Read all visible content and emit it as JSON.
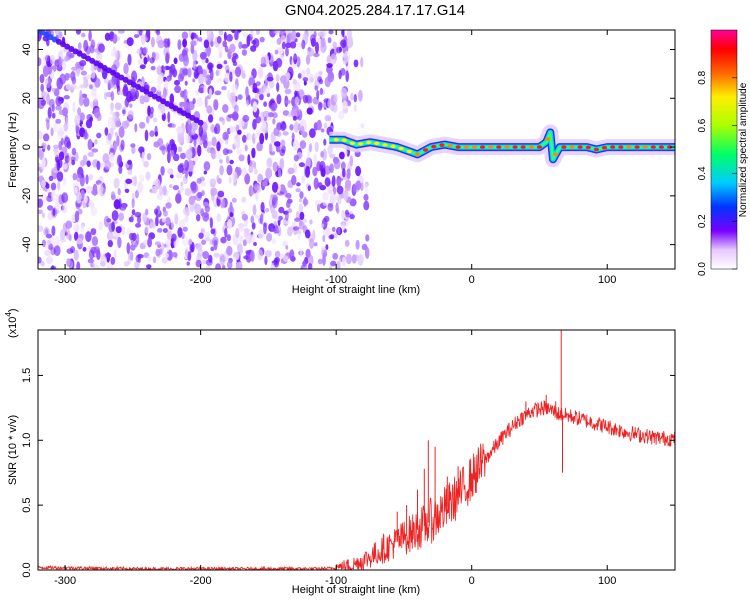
{
  "title": "GN04.2025.284.17.17.G14",
  "chart_data": [
    {
      "type": "heatmap",
      "title": "GN04.2025.284.17.17.G14",
      "xlabel": "Height of straight line (km)",
      "ylabel": "Frequency (Hz)",
      "xlim": [
        -320,
        150
      ],
      "ylim": [
        -50,
        48
      ],
      "xticks": [
        "-300",
        "-200",
        "-100",
        "0",
        "100"
      ],
      "yticks": [
        "-40",
        "-20",
        "0",
        "20",
        "40"
      ],
      "colorbar": {
        "label": "Normalized spectral amplitude",
        "range": [
          0,
          1
        ],
        "ticks": [
          "0.0",
          "0.2",
          "0.4",
          "0.6",
          "0.8"
        ],
        "colors": [
          "#ffffff",
          "#e6c8ff",
          "#7700ff",
          "#0033ff",
          "#00ccff",
          "#00ff66",
          "#aaff00",
          "#ffee00",
          "#ff6600",
          "#ff0000",
          "#ff0099"
        ]
      },
      "noise_region_x": [
        -320,
        -90
      ],
      "diagonal_track": {
        "x": [
          -320,
          -200
        ],
        "y": [
          48,
          10
        ]
      },
      "signal_line": {
        "x": [
          -105,
          -95,
          -85,
          -75,
          -65,
          -55,
          -45,
          -40,
          -30,
          -20,
          -10,
          0,
          10,
          20,
          30,
          40,
          50,
          55,
          58,
          60,
          65,
          75,
          85,
          92,
          100,
          120,
          150
        ],
        "y": [
          3,
          3,
          1,
          2,
          1,
          0,
          -2,
          -3,
          0,
          1,
          0,
          0,
          0,
          0,
          0,
          0,
          0,
          2,
          6,
          -5,
          0,
          0,
          0,
          -1,
          0,
          0,
          0
        ]
      }
    },
    {
      "type": "line",
      "xlabel": "Height of straight line (km)",
      "ylabel": "SNR (10 * v/v)",
      "y_multiplier": "(x10",
      "y_multiplier_exp": "4",
      "xlim": [
        -320,
        150
      ],
      "ylim": [
        0,
        1.85
      ],
      "xticks": [
        "-300",
        "-200",
        "-100",
        "0",
        "100"
      ],
      "yticks": [
        "0.0",
        "0.5",
        "1.0",
        "1.5"
      ],
      "series": [
        {
          "color": "#ee2222",
          "x": [
            -320,
            -250,
            -200,
            -150,
            -110,
            -95,
            -85,
            -75,
            -65,
            -55,
            -45,
            -35,
            -25,
            -15,
            -5,
            5,
            15,
            25,
            35,
            45,
            55,
            65,
            75,
            85,
            95,
            105,
            115,
            125,
            135,
            150
          ],
          "y": [
            0.02,
            0.01,
            0.01,
            0.01,
            0.01,
            0.02,
            0.05,
            0.1,
            0.16,
            0.22,
            0.28,
            0.34,
            0.42,
            0.52,
            0.64,
            0.78,
            0.92,
            1.05,
            1.16,
            1.23,
            1.25,
            1.2,
            1.18,
            1.15,
            1.12,
            1.09,
            1.06,
            1.04,
            1.02,
            1.01
          ]
        }
      ],
      "spikes": [
        {
          "x": -65,
          "y": 0.28
        },
        {
          "x": -55,
          "y": 0.45
        },
        {
          "x": -48,
          "y": 0.5
        },
        {
          "x": -40,
          "y": 0.62
        },
        {
          "x": -35,
          "y": 0.78
        },
        {
          "x": -32,
          "y": 1.0
        },
        {
          "x": -27,
          "y": 0.95
        },
        {
          "x": -18,
          "y": 0.72
        },
        {
          "x": -10,
          "y": 0.8
        },
        {
          "x": 40,
          "y": 1.3
        },
        {
          "x": 55,
          "y": 1.35
        },
        {
          "x": 62,
          "y": 1.3
        },
        {
          "x": 66,
          "y": 1.85
        },
        {
          "x": 67,
          "y": 0.75
        }
      ]
    }
  ]
}
